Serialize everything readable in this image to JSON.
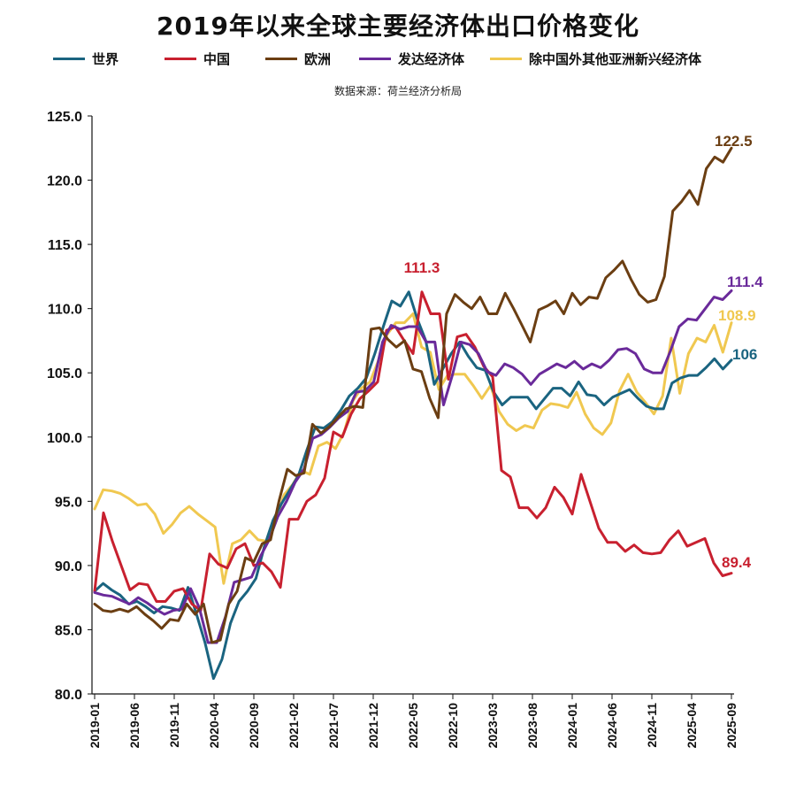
{
  "chart_data": {
    "type": "line",
    "title": "2019年以来全球主要经济体出口价格变化",
    "subtitle": "数据来源：荷兰经济分析局",
    "ylim": [
      80,
      125
    ],
    "yticks": [
      "80.0",
      "85.0",
      "90.0",
      "95.0",
      "100.0",
      "105.0",
      "110.0",
      "115.0",
      "120.0",
      "125.0"
    ],
    "ytick_values": [
      80,
      85,
      90,
      95,
      100,
      105,
      110,
      115,
      120,
      125
    ],
    "xtick_labels": [
      "2019-01",
      "2019-06",
      "2019-11",
      "2020-04",
      "2020-09",
      "2021-02",
      "2021-07",
      "2021-12",
      "2022-05",
      "2022-10",
      "2023-03",
      "2023-08",
      "2024-01",
      "2024-06",
      "2024-11",
      "2025-04",
      "2025-09"
    ],
    "xtick_index": [
      0,
      5,
      10,
      15,
      20,
      25,
      30,
      35,
      40,
      45,
      50,
      55,
      60,
      65,
      70,
      75,
      80
    ],
    "grid": false,
    "legend_position": "top",
    "series": [
      {
        "name": "世界",
        "color": "#1a6480",
        "end_label": "106",
        "values": [
          88.0,
          88.6,
          88.1,
          87.7,
          87.0,
          87.2,
          86.8,
          86.3,
          86.8,
          86.7,
          86.5,
          88.3,
          86.2,
          84.0,
          81.2,
          82.7,
          85.5,
          87.2,
          88.0,
          89.0,
          91.5,
          93.5,
          94.8,
          95.9,
          97.0,
          99.0,
          100.8,
          100.7,
          101.2,
          102.1,
          103.2,
          103.8,
          104.6,
          106.5,
          108.6,
          110.6,
          110.2,
          111.3,
          109.2,
          107.5,
          104.1,
          105.3,
          106.5,
          107.4,
          106.3,
          105.4,
          105.2,
          103.5,
          102.5,
          103.1,
          103.1,
          103.1,
          102.2,
          103.0,
          103.8,
          103.8,
          103.2,
          104.3,
          103.3,
          103.2,
          102.5,
          103.1,
          103.4,
          103.7,
          103.0,
          102.4,
          102.2,
          102.2,
          104.2,
          104.6,
          104.8,
          104.8,
          105.4,
          106.1,
          105.3,
          106.0
        ]
      },
      {
        "name": "中国",
        "color": "#c8202f",
        "end_label": "89.4",
        "values": [
          88.0,
          94.1,
          91.9,
          90.0,
          88.1,
          88.6,
          88.5,
          87.2,
          87.2,
          88.0,
          88.2,
          87.0,
          86.5,
          90.9,
          90.1,
          89.8,
          91.3,
          91.7,
          90.0,
          90.2,
          89.5,
          88.3,
          93.6,
          93.6,
          95.0,
          95.5,
          96.8,
          100.4,
          100.0,
          101.8,
          103.0,
          103.6,
          104.3,
          108.3,
          108.6,
          107.5,
          106.5,
          111.3,
          109.6,
          109.6,
          104.5,
          107.8,
          108.0,
          107.0,
          105.5,
          104.7,
          97.4,
          96.9,
          94.5,
          94.5,
          93.7,
          94.5,
          96.1,
          95.3,
          94.0,
          97.1,
          95.0,
          92.9,
          91.8,
          91.8,
          91.1,
          91.6,
          91.0,
          90.9,
          91.0,
          92.0,
          92.7,
          91.5,
          91.8,
          92.1,
          90.2,
          89.2,
          89.4
        ]
      },
      {
        "name": "欧洲",
        "color": "#6b3e12",
        "end_label": "122.5",
        "values": [
          87.0,
          86.5,
          86.4,
          86.6,
          86.4,
          86.8,
          86.2,
          85.7,
          85.1,
          85.8,
          85.7,
          87.0,
          86.2,
          87.0,
          84.0,
          84.2,
          87.0,
          88.0,
          90.6,
          90.3,
          91.7,
          92.0,
          95.0,
          97.5,
          97.0,
          97.2,
          101.0,
          100.3,
          100.8,
          101.5,
          102.2,
          102.4,
          102.3,
          108.4,
          108.5,
          107.6,
          107.0,
          107.5,
          105.3,
          105.1,
          103.0,
          101.5,
          109.6,
          111.1,
          110.5,
          110.0,
          110.9,
          109.6,
          109.6,
          111.2,
          110.0,
          108.7,
          107.4,
          109.9,
          110.2,
          110.6,
          109.6,
          111.2,
          110.3,
          110.9,
          110.8,
          112.4,
          113.0,
          113.7,
          112.3,
          111.1,
          110.5,
          110.7,
          112.5,
          117.6,
          118.3,
          119.2,
          118.1,
          120.9,
          121.8,
          121.4,
          122.5
        ]
      },
      {
        "name": "发达经济体",
        "color": "#6a2a9a",
        "end_label": "111.4",
        "values": [
          87.9,
          87.7,
          87.6,
          87.3,
          87.0,
          87.5,
          87.1,
          86.6,
          86.2,
          86.5,
          86.6,
          88.2,
          86.7,
          84.0,
          84.0,
          86.0,
          88.7,
          88.9,
          89.1,
          90.7,
          92.0,
          93.8,
          95.0,
          96.5,
          97.5,
          99.9,
          100.2,
          100.8,
          101.5,
          102.0,
          103.5,
          103.6,
          104.3,
          107.4,
          108.7,
          108.4,
          108.6,
          108.6,
          107.4,
          107.4,
          102.5,
          104.8,
          107.4,
          107.2,
          106.5,
          105.1,
          104.8,
          105.7,
          105.4,
          104.9,
          104.1,
          104.9,
          105.3,
          105.7,
          105.4,
          105.9,
          105.3,
          105.7,
          105.4,
          106.0,
          106.8,
          106.9,
          106.5,
          105.3,
          105.0,
          105.0,
          106.7,
          108.6,
          109.2,
          109.1,
          110.0,
          110.9,
          110.7,
          111.4
        ]
      },
      {
        "name": "除中国外其他亚洲新兴经济体",
        "color": "#f0c850",
        "end_label": "108.9",
        "values": [
          94.4,
          95.9,
          95.8,
          95.6,
          95.2,
          94.7,
          94.8,
          94.0,
          92.5,
          93.2,
          94.1,
          94.6,
          94.0,
          93.5,
          93.0,
          88.6,
          91.7,
          92.0,
          92.7,
          92.0,
          91.9,
          93.3,
          95.5,
          96.3,
          97.4,
          97.1,
          99.3,
          99.6,
          99.1,
          100.4,
          102.8,
          103.8,
          104.3,
          106.0,
          108.0,
          108.9,
          108.9,
          109.6,
          107.0,
          106.6,
          103.7,
          104.8,
          104.9,
          104.9,
          104.0,
          103.0,
          104.0,
          102.0,
          101.0,
          100.5,
          100.9,
          100.7,
          102.1,
          102.6,
          102.5,
          102.3,
          103.5,
          101.8,
          100.7,
          100.2,
          101.1,
          103.6,
          104.9,
          103.5,
          102.7,
          101.8,
          103.2,
          107.7,
          103.4,
          106.5,
          107.7,
          107.4,
          108.7,
          106.6,
          108.9
        ]
      }
    ]
  }
}
